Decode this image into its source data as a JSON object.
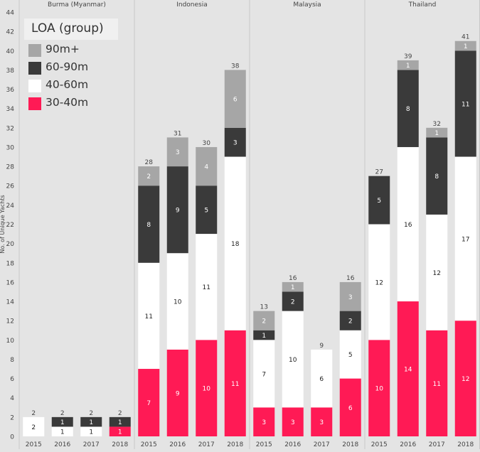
{
  "chart_data": {
    "type": "bar",
    "stacked": true,
    "ylabel": "No. of Unique Yachts",
    "ylim": [
      0,
      44
    ],
    "yticks": [
      0,
      2,
      4,
      6,
      8,
      10,
      12,
      14,
      16,
      18,
      20,
      22,
      24,
      26,
      28,
      30,
      32,
      34,
      36,
      38,
      40,
      42,
      44
    ],
    "grid": false,
    "legend": {
      "title": "LOA (group)",
      "position": "top-left",
      "items": [
        {
          "label": "90m+",
          "color": "#a6a6a6"
        },
        {
          "label": "60-90m",
          "color": "#3a3a3a"
        },
        {
          "label": "40-60m",
          "color": "#ffffff"
        },
        {
          "label": "30-40m",
          "color": "#ff1a55"
        }
      ]
    },
    "series_order": [
      "30-40m",
      "40-60m",
      "60-90m",
      "90m+"
    ],
    "series_colors": {
      "30-40m": "#ff1a55",
      "40-60m": "#ffffff",
      "60-90m": "#3a3a3a",
      "90m+": "#a6a6a6"
    },
    "panels": [
      {
        "name": "Burma (Myanmar)",
        "bars": [
          {
            "x": "2015",
            "total": 2,
            "segments": {
              "30-40m": 0,
              "40-60m": 2,
              "60-90m": 0,
              "90m+": 0
            }
          },
          {
            "x": "2016",
            "total": 2,
            "segments": {
              "30-40m": 0,
              "40-60m": 1,
              "60-90m": 1,
              "90m+": 0
            }
          },
          {
            "x": "2017",
            "total": 2,
            "segments": {
              "30-40m": 0,
              "40-60m": 1,
              "60-90m": 1,
              "90m+": 0
            }
          },
          {
            "x": "2018",
            "total": 2,
            "segments": {
              "30-40m": 1,
              "40-60m": 0,
              "60-90m": 1,
              "90m+": 0
            }
          }
        ]
      },
      {
        "name": "Indonesia",
        "bars": [
          {
            "x": "2015",
            "total": 28,
            "segments": {
              "30-40m": 7,
              "40-60m": 11,
              "60-90m": 8,
              "90m+": 2
            }
          },
          {
            "x": "2016",
            "total": 31,
            "segments": {
              "30-40m": 9,
              "40-60m": 10,
              "60-90m": 9,
              "90m+": 3
            }
          },
          {
            "x": "2017",
            "total": 30,
            "segments": {
              "30-40m": 10,
              "40-60m": 11,
              "60-90m": 5,
              "90m+": 4
            }
          },
          {
            "x": "2018",
            "total": 38,
            "segments": {
              "30-40m": 11,
              "40-60m": 18,
              "60-90m": 3,
              "90m+": 6
            }
          }
        ]
      },
      {
        "name": "Malaysia",
        "bars": [
          {
            "x": "2015",
            "total": 13,
            "segments": {
              "30-40m": 3,
              "40-60m": 7,
              "60-90m": 1,
              "90m+": 2
            }
          },
          {
            "x": "2016",
            "total": 16,
            "segments": {
              "30-40m": 3,
              "40-60m": 10,
              "60-90m": 2,
              "90m+": 1
            }
          },
          {
            "x": "2017",
            "total": 9,
            "segments": {
              "30-40m": 3,
              "40-60m": 6,
              "60-90m": 0,
              "90m+": 0
            }
          },
          {
            "x": "2018",
            "total": 16,
            "segments": {
              "30-40m": 6,
              "40-60m": 5,
              "60-90m": 2,
              "90m+": 3
            }
          }
        ]
      },
      {
        "name": "Thailand",
        "bars": [
          {
            "x": "2015",
            "total": 27,
            "segments": {
              "30-40m": 10,
              "40-60m": 12,
              "60-90m": 5,
              "90m+": 0
            }
          },
          {
            "x": "2016",
            "total": 39,
            "segments": {
              "30-40m": 14,
              "40-60m": 16,
              "60-90m": 8,
              "90m+": 1
            }
          },
          {
            "x": "2017",
            "total": 32,
            "segments": {
              "30-40m": 11,
              "40-60m": 12,
              "60-90m": 8,
              "90m+": 1
            }
          },
          {
            "x": "2018",
            "total": 41,
            "segments": {
              "30-40m": 12,
              "40-60m": 17,
              "60-90m": 11,
              "90m+": 1
            }
          }
        ]
      }
    ]
  }
}
